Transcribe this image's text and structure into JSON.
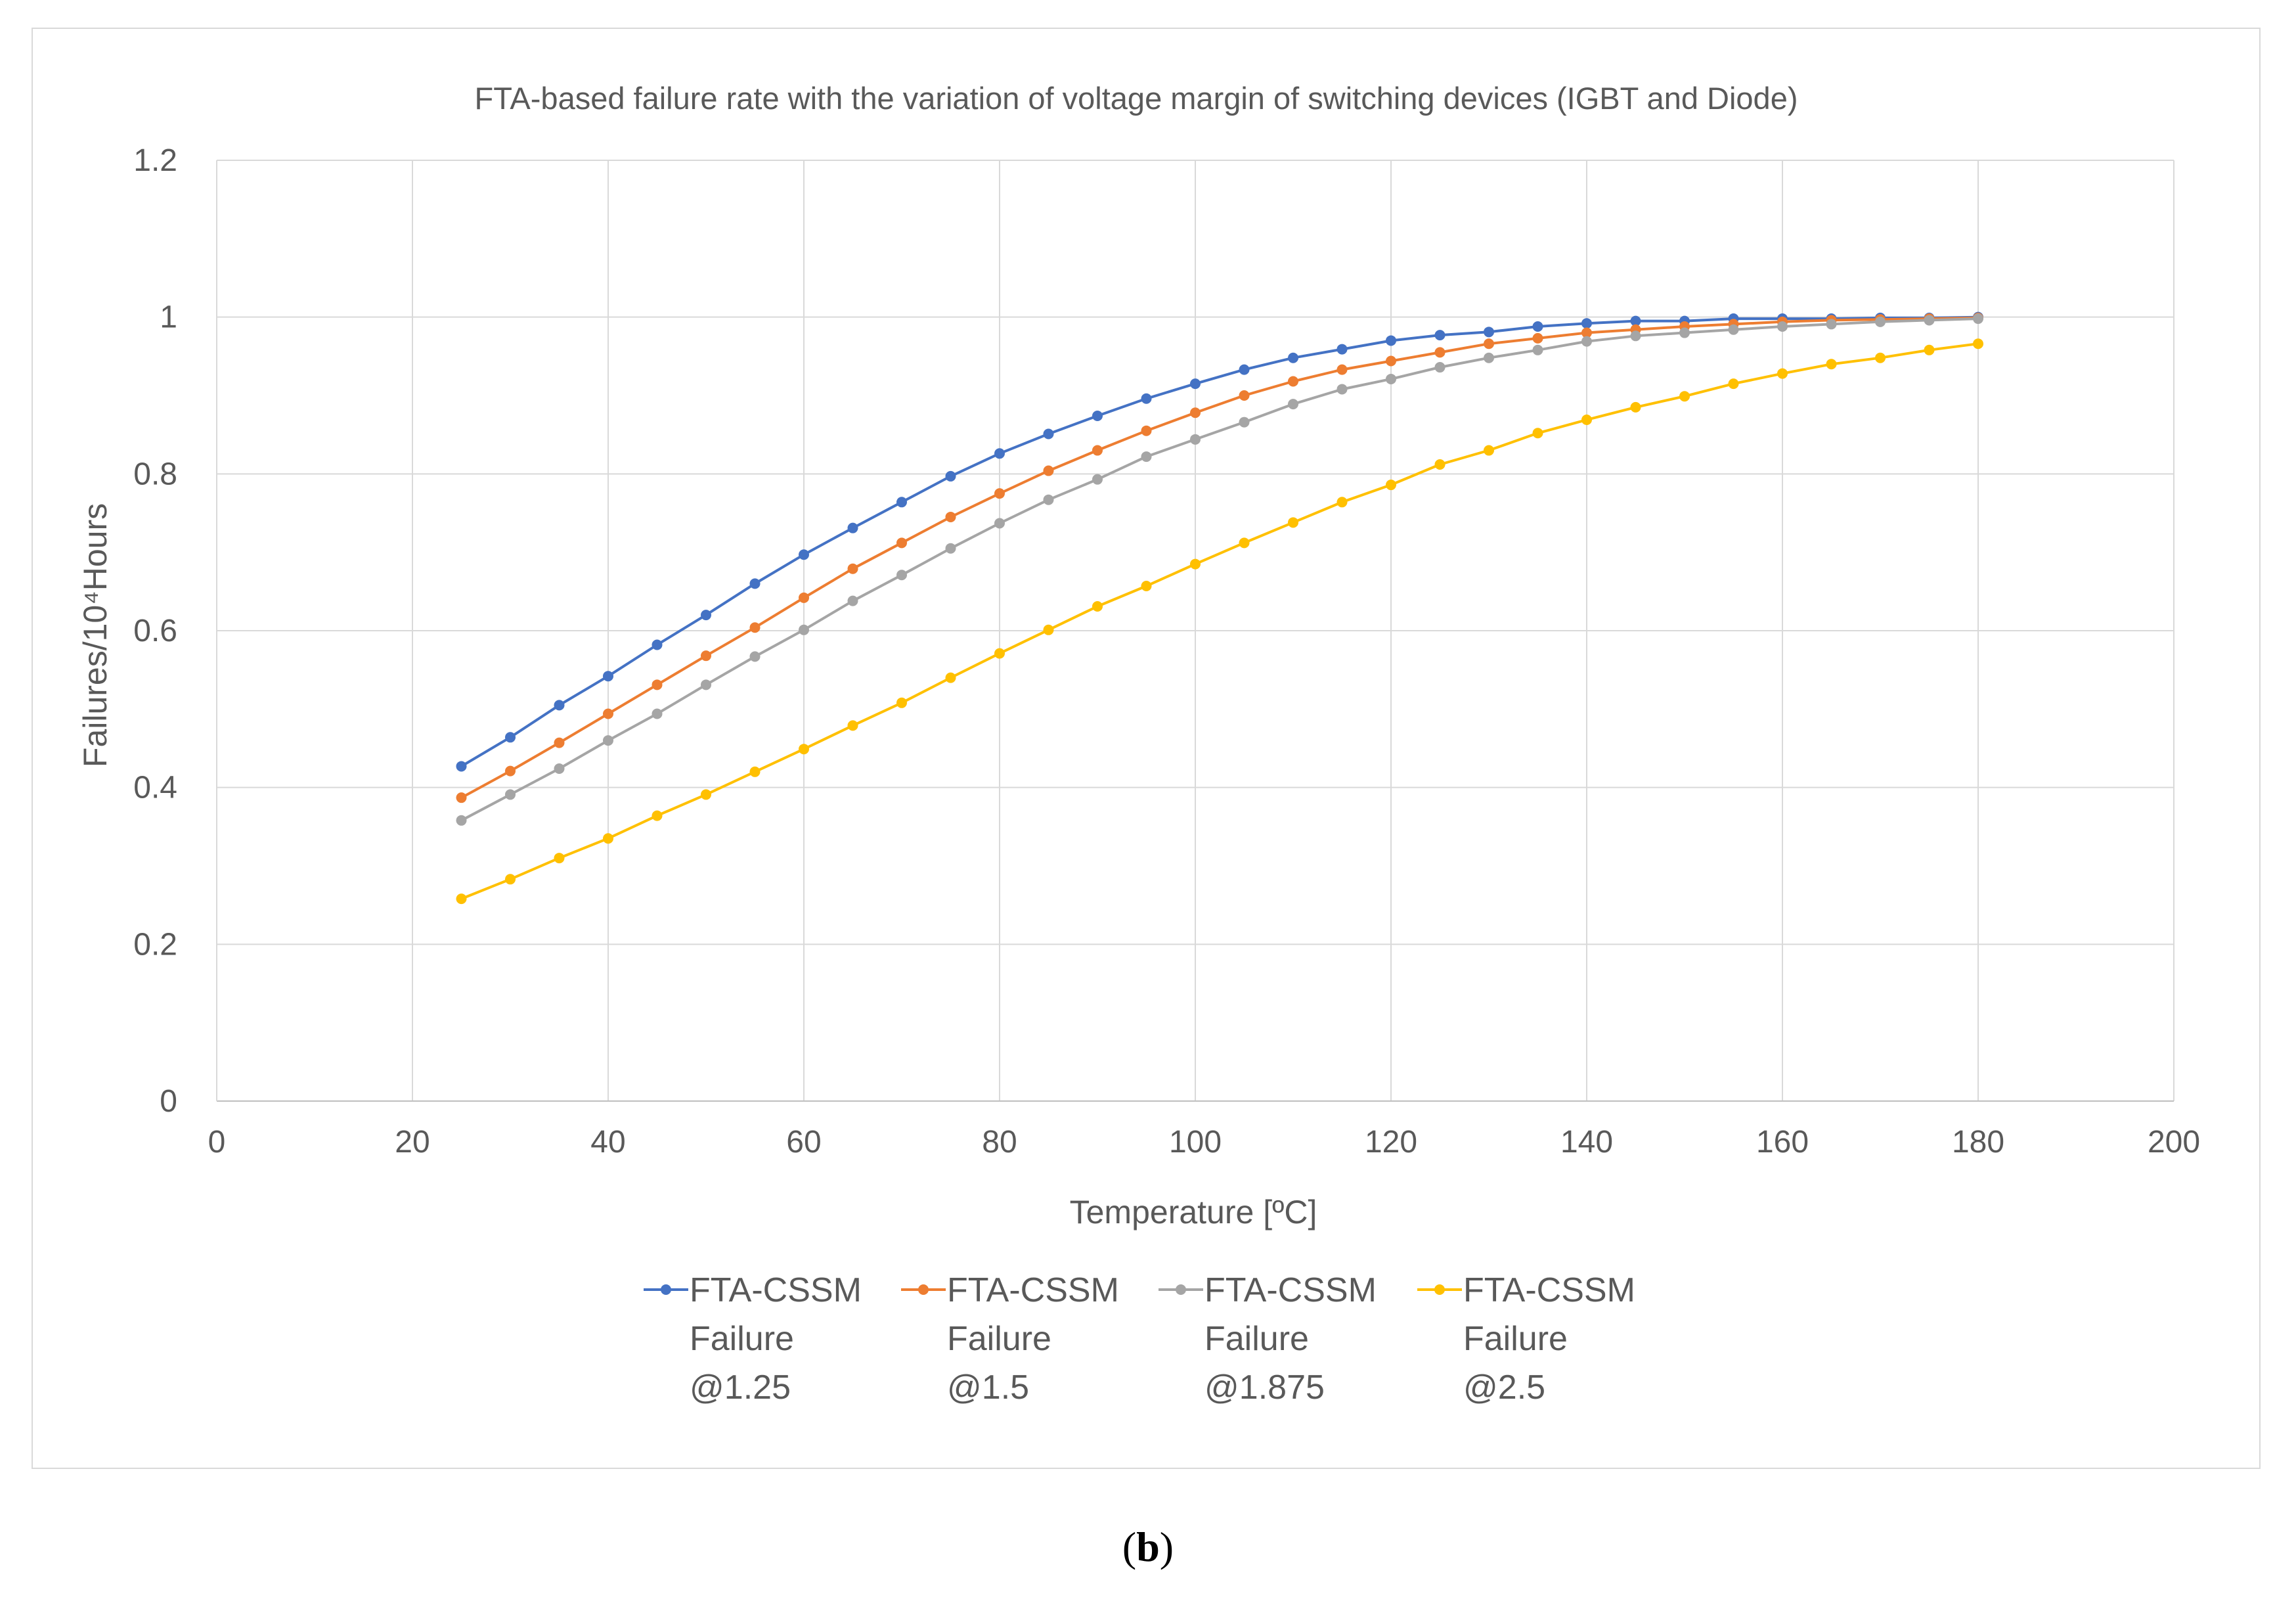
{
  "caption": {
    "open": "(",
    "letter": "b",
    "close": ")"
  },
  "chart_data": {
    "type": "line",
    "title": "FTA-based failure rate with the variation of voltage margin of switching devices (IGBT and Diode)",
    "xlabel": "Temperature [ºC]",
    "ylabel": "Failures/10⁴Hours",
    "xlim": [
      0,
      200
    ],
    "ylim": [
      0,
      1.2
    ],
    "xticks": [
      "0",
      "20",
      "40",
      "60",
      "80",
      "100",
      "120",
      "140",
      "160",
      "180",
      "200"
    ],
    "yticks": [
      "0",
      "0.2",
      "0.4",
      "0.6",
      "0.8",
      "1",
      "1.2"
    ],
    "grid": true,
    "legend_position": "bottom",
    "x": [
      25,
      30,
      35,
      40,
      45,
      50,
      55,
      60,
      65,
      70,
      75,
      80,
      85,
      90,
      95,
      100,
      105,
      110,
      115,
      120,
      125,
      130,
      135,
      140,
      145,
      150,
      155,
      160,
      165,
      170,
      175,
      180
    ],
    "series": [
      {
        "name_lines": [
          "FTA-CSSM",
          "Failure",
          "@1.25"
        ],
        "color": "#4472c4",
        "values": [
          0.427,
          0.464,
          0.505,
          0.542,
          0.582,
          0.62,
          0.66,
          0.697,
          0.731,
          0.764,
          0.797,
          0.826,
          0.851,
          0.874,
          0.896,
          0.915,
          0.933,
          0.948,
          0.959,
          0.97,
          0.977,
          0.981,
          0.988,
          0.992,
          0.995,
          0.995,
          0.998,
          0.998,
          0.998,
          0.999,
          0.999,
          1.0
        ]
      },
      {
        "name_lines": [
          "FTA-CSSM",
          "Failure",
          "@1.5"
        ],
        "color": "#ed7d31",
        "values": [
          0.387,
          0.421,
          0.457,
          0.494,
          0.531,
          0.568,
          0.604,
          0.642,
          0.679,
          0.712,
          0.745,
          0.775,
          0.804,
          0.83,
          0.855,
          0.878,
          0.9,
          0.918,
          0.933,
          0.944,
          0.955,
          0.966,
          0.973,
          0.98,
          0.984,
          0.988,
          0.991,
          0.994,
          0.996,
          0.997,
          0.998,
          0.999
        ]
      },
      {
        "name_lines": [
          "FTA-CSSM",
          "Failure",
          "@1.875"
        ],
        "color": "#a5a5a5",
        "values": [
          0.358,
          0.391,
          0.424,
          0.46,
          0.494,
          0.531,
          0.567,
          0.601,
          0.638,
          0.671,
          0.705,
          0.737,
          0.767,
          0.793,
          0.822,
          0.844,
          0.866,
          0.889,
          0.908,
          0.921,
          0.936,
          0.948,
          0.958,
          0.969,
          0.976,
          0.98,
          0.984,
          0.988,
          0.991,
          0.994,
          0.996,
          0.998
        ]
      },
      {
        "name_lines": [
          "FTA-CSSM",
          "Failure",
          "@2.5"
        ],
        "color": "#ffc000",
        "values": [
          0.258,
          0.283,
          0.31,
          0.335,
          0.364,
          0.391,
          0.42,
          0.449,
          0.479,
          0.508,
          0.54,
          0.571,
          0.601,
          0.631,
          0.657,
          0.685,
          0.712,
          0.738,
          0.764,
          0.786,
          0.812,
          0.83,
          0.852,
          0.869,
          0.885,
          0.899,
          0.915,
          0.928,
          0.94,
          0.948,
          0.958,
          0.966
        ]
      }
    ]
  }
}
